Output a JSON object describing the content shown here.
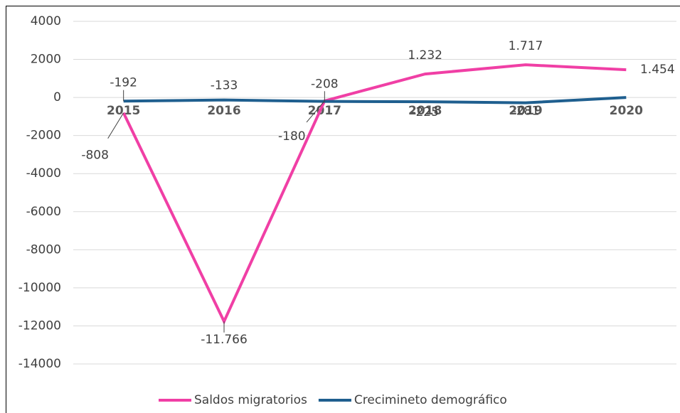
{
  "chart_data": {
    "type": "line",
    "categories": [
      "2015",
      "2016",
      "2017",
      "2018",
      "2019",
      "2020"
    ],
    "series": [
      {
        "name": "Saldos migratorios",
        "color": "#f03fa5",
        "values": [
          -808,
          -11766,
          -180,
          1232,
          1717,
          1454
        ],
        "value_labels": [
          "-808",
          "-11.766",
          "-180",
          "1.232",
          "1.717",
          "1.454"
        ]
      },
      {
        "name": "Crecimineto demográfico",
        "color": "#1f5f8f",
        "values": [
          -192,
          -133,
          -208,
          -225,
          -281,
          0
        ],
        "value_labels": [
          "-192",
          "-133",
          "-208",
          "-225",
          "-281",
          null
        ]
      }
    ],
    "ylim": [
      -14000,
      4000
    ],
    "yticks": [
      -14000,
      -12000,
      -10000,
      -8000,
      -6000,
      -4000,
      -2000,
      0,
      2000,
      4000
    ],
    "grid": true,
    "legend": "bottom"
  }
}
